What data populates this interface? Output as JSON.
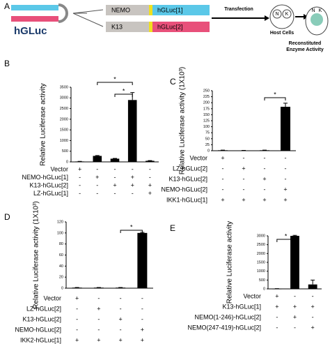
{
  "diagram": {
    "panel": "A",
    "fragment": "hGLuc",
    "constructs": [
      {
        "partner": "NEMO",
        "fragment": "hGLuc[1]"
      },
      {
        "partner": "K13",
        "fragment": "hGLuc[2]"
      }
    ],
    "step": "Transfection",
    "cell": {
      "nuclei": [
        "N",
        "K"
      ],
      "label": "Host Cells"
    },
    "result": {
      "nuclei": [
        "N",
        "K"
      ],
      "label": [
        "Reconstituted",
        "Enzyme Activity"
      ]
    }
  },
  "chart_data": [
    {
      "type": "bar",
      "panel": "B",
      "ylabel": "Relative Luciferase activity",
      "color": "#000000",
      "values": [
        20,
        280,
        150,
        2900,
        50
      ],
      "errors": [
        5,
        20,
        15,
        350,
        10
      ],
      "ylim": [
        0,
        3500
      ],
      "yticks": [
        0,
        500,
        1000,
        1500,
        2000,
        2500,
        3000,
        3500
      ],
      "conditions": [
        {
          "name": "Vector",
          "signs": [
            "+",
            "-",
            "-",
            "-",
            "-"
          ]
        },
        {
          "name": "NEMO-hGLuc[1]",
          "signs": [
            "-",
            "+",
            "-",
            "+",
            "-"
          ]
        },
        {
          "name": "K13-hGLuc[2]",
          "signs": [
            "-",
            "-",
            "+",
            "+",
            "+"
          ]
        },
        {
          "name": "LZ-hGLuc[1]",
          "signs": [
            "-",
            "-",
            "-",
            "-",
            "+"
          ]
        }
      ],
      "annotations": [
        "*",
        "*"
      ]
    },
    {
      "type": "bar",
      "panel": "C",
      "ylabel": "Relative Luciferase activity (1X10³)",
      "color": "#000000",
      "values": [
        2,
        1,
        2,
        183
      ],
      "errors": [
        0.5,
        0.5,
        0.5,
        15
      ],
      "ylim": [
        0,
        250
      ],
      "yticks": [
        0,
        25,
        50,
        75,
        100,
        125,
        150,
        175,
        200,
        225,
        250
      ],
      "conditions": [
        {
          "name": "Vector",
          "signs": [
            "+",
            "-",
            "-",
            "-"
          ]
        },
        {
          "name": "LZ-hGLuc[2]",
          "signs": [
            "-",
            "+",
            "-",
            "-"
          ]
        },
        {
          "name": "K13-hGLuc[2]",
          "signs": [
            "-",
            "-",
            "+",
            "-"
          ]
        },
        {
          "name": "NEMO-hGLuc[2]",
          "signs": [
            "-",
            "-",
            "-",
            "+"
          ]
        },
        {
          "name": "IKK1-hGLuc[1]",
          "signs": [
            "+",
            "+",
            "+",
            "+"
          ]
        }
      ],
      "annotations": [
        "*"
      ]
    },
    {
      "type": "bar",
      "panel": "D",
      "ylabel": "Relative Luciferase activity (1X10³)",
      "color": "#000000",
      "values": [
        1,
        1,
        1,
        100
      ],
      "errors": [
        0.3,
        0.3,
        0.3,
        1
      ],
      "ylim": [
        0,
        120
      ],
      "yticks": [
        0,
        20,
        40,
        60,
        80,
        100,
        120
      ],
      "conditions": [
        {
          "name": "Vector",
          "signs": [
            "+",
            "-",
            "-",
            "-"
          ]
        },
        {
          "name": "LZ-hGLuc[2]",
          "signs": [
            "-",
            "+",
            "-",
            "-"
          ]
        },
        {
          "name": "K13-hGLuc[2]",
          "signs": [
            "-",
            "-",
            "+",
            "-"
          ]
        },
        {
          "name": "NEMO-hGLuc[2]",
          "signs": [
            "-",
            "-",
            "-",
            "+"
          ]
        },
        {
          "name": "IKK2-hGLuc[1]",
          "signs": [
            "+",
            "+",
            "+",
            "+"
          ]
        }
      ],
      "annotations": [
        "*"
      ]
    },
    {
      "type": "bar",
      "panel": "E",
      "ylabel": "Relative Luciferase activity",
      "color": "#000000",
      "values": [
        10,
        3000,
        250
      ],
      "errors": [
        5,
        30,
        250
      ],
      "ylim": [
        0,
        3000
      ],
      "yticks": [
        0,
        500,
        1000,
        1500,
        2000,
        2500,
        3000
      ],
      "conditions": [
        {
          "name": "Vector",
          "signs": [
            "+",
            "-",
            "-"
          ]
        },
        {
          "name": "K13-hGLuc[1]",
          "signs": [
            "+",
            "+",
            "+"
          ]
        },
        {
          "name": "NEMO(1-246)-hGLuc[2]",
          "signs": [
            "-",
            "+",
            "-"
          ]
        },
        {
          "name": "NEMO(247-419)-hGLuc[2]",
          "signs": [
            "-",
            "-",
            "+"
          ]
        }
      ],
      "annotations": [
        "*"
      ]
    }
  ]
}
